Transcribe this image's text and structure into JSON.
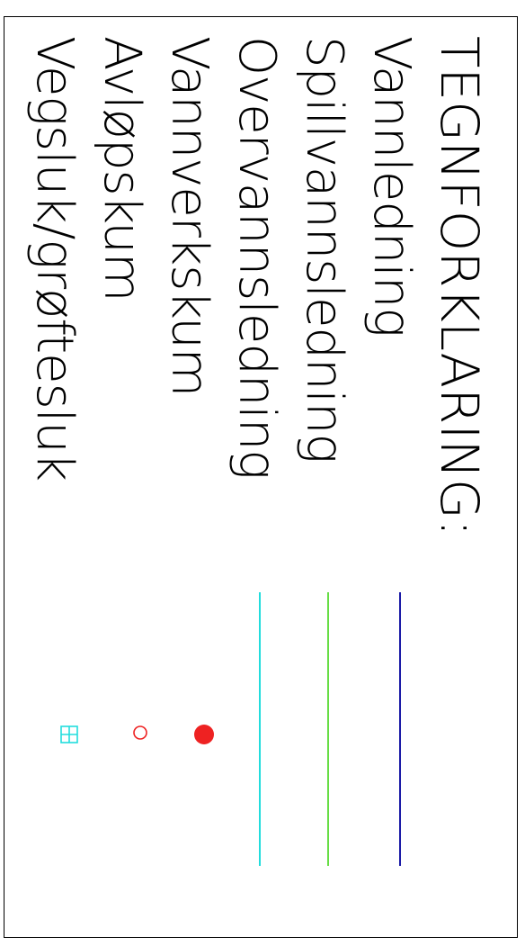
{
  "legend": {
    "title": "TEGNFORKLARING:",
    "items": [
      {
        "label": "Vannledning",
        "symbol": "line",
        "color": "#1a1aa6"
      },
      {
        "label": "Spillvannsledning",
        "symbol": "line",
        "color": "#66dd44"
      },
      {
        "label": "Overvannsledning",
        "symbol": "line",
        "color": "#22dddd"
      },
      {
        "label": "Vannverkskum",
        "symbol": "filled-circle",
        "color": "#ee2222"
      },
      {
        "label": "Avløpskum",
        "symbol": "open-circle",
        "color": "#ee2222"
      },
      {
        "label": "Vegsluk/grøftesluk",
        "symbol": "grid-square",
        "color": "#22dddd"
      }
    ]
  }
}
